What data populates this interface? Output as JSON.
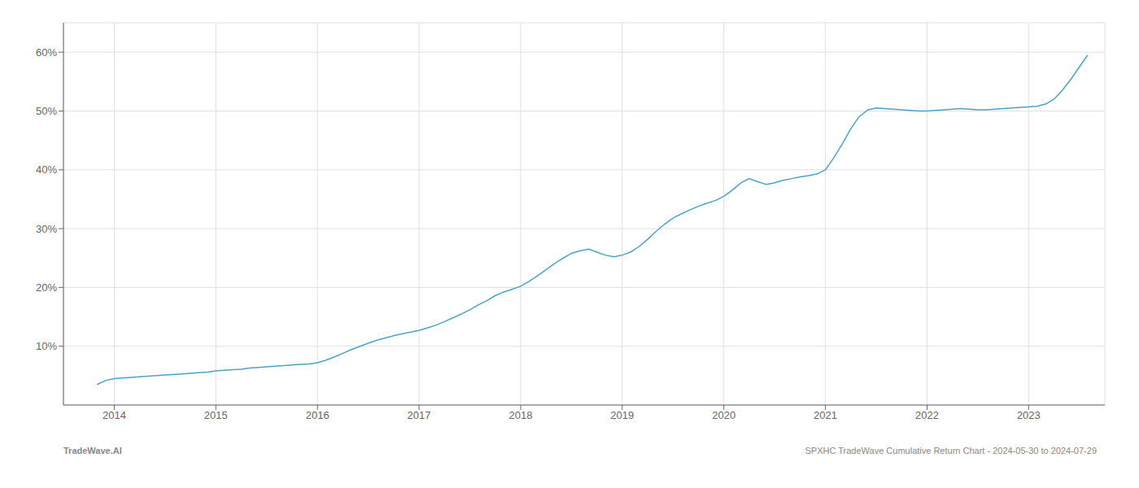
{
  "chart_data": {
    "type": "line",
    "x": [
      2013.83,
      2013.92,
      2014.0,
      2014.08,
      2014.17,
      2014.25,
      2014.33,
      2014.42,
      2014.5,
      2014.58,
      2014.67,
      2014.75,
      2014.83,
      2014.92,
      2015.0,
      2015.08,
      2015.17,
      2015.25,
      2015.33,
      2015.42,
      2015.5,
      2015.58,
      2015.67,
      2015.75,
      2015.83,
      2015.92,
      2016.0,
      2016.08,
      2016.17,
      2016.25,
      2016.33,
      2016.42,
      2016.5,
      2016.58,
      2016.67,
      2016.75,
      2016.83,
      2016.92,
      2017.0,
      2017.08,
      2017.17,
      2017.25,
      2017.33,
      2017.42,
      2017.5,
      2017.58,
      2017.67,
      2017.75,
      2017.83,
      2017.92,
      2018.0,
      2018.08,
      2018.17,
      2018.25,
      2018.33,
      2018.42,
      2018.5,
      2018.58,
      2018.67,
      2018.75,
      2018.83,
      2018.92,
      2019.0,
      2019.08,
      2019.17,
      2019.25,
      2019.33,
      2019.42,
      2019.5,
      2019.58,
      2019.67,
      2019.75,
      2019.83,
      2019.92,
      2020.0,
      2020.08,
      2020.17,
      2020.25,
      2020.33,
      2020.42,
      2020.5,
      2020.58,
      2020.67,
      2020.75,
      2020.83,
      2020.92,
      2021.0,
      2021.08,
      2021.17,
      2021.25,
      2021.33,
      2021.42,
      2021.5,
      2021.58,
      2021.67,
      2021.75,
      2021.83,
      2021.92,
      2022.0,
      2022.08,
      2022.17,
      2022.25,
      2022.33,
      2022.42,
      2022.5,
      2022.58,
      2022.67,
      2022.75,
      2022.83,
      2022.92,
      2023.0,
      2023.08,
      2023.17,
      2023.25,
      2023.33,
      2023.42,
      2023.5,
      2023.58
    ],
    "values": [
      3.5,
      4.2,
      4.5,
      4.6,
      4.7,
      4.8,
      4.9,
      5.0,
      5.1,
      5.2,
      5.3,
      5.4,
      5.5,
      5.6,
      5.8,
      5.9,
      6.0,
      6.1,
      6.3,
      6.4,
      6.5,
      6.6,
      6.7,
      6.8,
      6.9,
      7.0,
      7.2,
      7.6,
      8.2,
      8.8,
      9.4,
      10.0,
      10.5,
      11.0,
      11.4,
      11.8,
      12.1,
      12.4,
      12.7,
      13.1,
      13.6,
      14.2,
      14.8,
      15.5,
      16.2,
      17.0,
      17.8,
      18.6,
      19.2,
      19.7,
      20.2,
      21.0,
      22.0,
      23.0,
      24.0,
      25.0,
      25.8,
      26.2,
      26.5,
      26.0,
      25.5,
      25.2,
      25.5,
      26.0,
      27.0,
      28.2,
      29.5,
      30.8,
      31.8,
      32.5,
      33.2,
      33.8,
      34.3,
      34.8,
      35.5,
      36.5,
      37.8,
      38.5,
      38.0,
      37.5,
      37.8,
      38.2,
      38.5,
      38.8,
      39.0,
      39.3,
      40.0,
      42.0,
      44.5,
      47.0,
      49.0,
      50.2,
      50.5,
      50.4,
      50.3,
      50.2,
      50.1,
      50.0,
      50.0,
      50.1,
      50.2,
      50.3,
      50.4,
      50.3,
      50.2,
      50.2,
      50.3,
      50.4,
      50.5,
      50.6,
      50.7,
      50.8,
      51.2,
      52.0,
      53.5,
      55.5,
      57.5,
      59.5
    ],
    "color": "#4aa3c8",
    "xlim": [
      2013.5,
      2023.75
    ],
    "xticks": [
      2014,
      2015,
      2016,
      2017,
      2018,
      2019,
      2020,
      2021,
      2022,
      2023
    ],
    "ylim": [
      0,
      65
    ],
    "yticks": [
      {
        "value": 10,
        "label": "10%"
      },
      {
        "value": 20,
        "label": "20%"
      },
      {
        "value": 30,
        "label": "30%"
      },
      {
        "value": 40,
        "label": "40%"
      },
      {
        "value": 50,
        "label": "50%"
      },
      {
        "value": 60,
        "label": "60%"
      }
    ],
    "grid": true,
    "annotations": [
      "TradeWave.AI",
      "SPXHC TradeWave Cumulative Return Chart - 2024-05-30 to 2024-07-29"
    ]
  }
}
